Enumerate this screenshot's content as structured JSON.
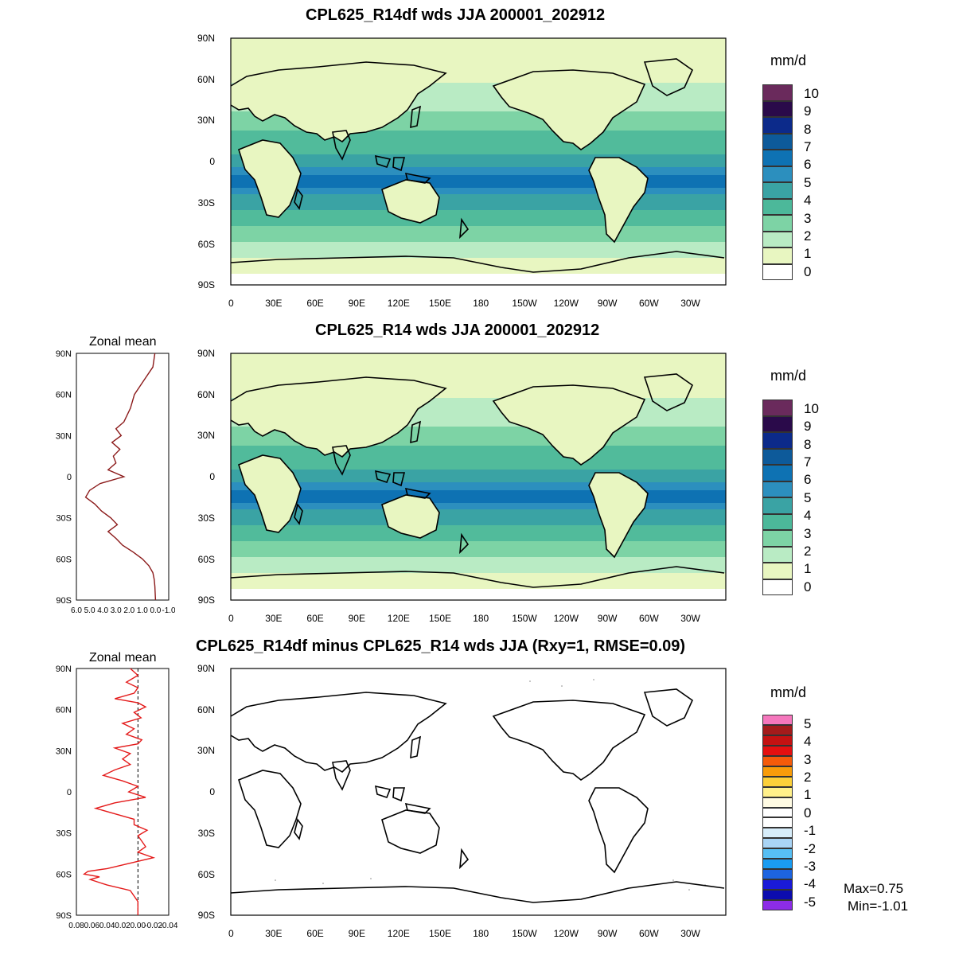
{
  "panels": [
    {
      "title": "CPL625_R14df wds JJA 200001_202912",
      "units": "mm/d",
      "colorbar": {
        "labels": [
          "10",
          "9",
          "8",
          "7",
          "6",
          "5",
          "4",
          "3",
          "2",
          "1",
          "0"
        ],
        "colors": [
          "#6a2a5c",
          "#2a0a4a",
          "#0c2a8a",
          "#0d5a9a",
          "#0e72b3",
          "#2c8fbe",
          "#3aa3a4",
          "#4cb89a",
          "#7dd3a5",
          "#b9ebc4",
          "#e8f6c1",
          "#ffffff"
        ]
      },
      "lat_labels": [
        "90N",
        "60N",
        "30N",
        "0",
        "30S",
        "60S",
        "90S"
      ],
      "lon_labels": [
        "0",
        "30E",
        "60E",
        "90E",
        "120E",
        "150E",
        "180",
        "150W",
        "120W",
        "90W",
        "60W",
        "30W"
      ]
    },
    {
      "title": "CPL625_R14 wds JJA 200001_202912",
      "units": "mm/d",
      "colorbar": {
        "labels": [
          "10",
          "9",
          "8",
          "7",
          "6",
          "5",
          "4",
          "3",
          "2",
          "1",
          "0"
        ],
        "colors": [
          "#6a2a5c",
          "#2a0a4a",
          "#0c2a8a",
          "#0d5a9a",
          "#0e72b3",
          "#2c8fbe",
          "#3aa3a4",
          "#4cb89a",
          "#7dd3a5",
          "#b9ebc4",
          "#e8f6c1",
          "#ffffff"
        ]
      },
      "zonal_title": "Zonal mean",
      "zonal_x_labels": [
        "6.0",
        "5.0",
        "4.0",
        "3.0",
        "2.0",
        "1.0",
        "0.0",
        "-1.0"
      ],
      "zonal_profile": {
        "lat": [
          90,
          80,
          70,
          60,
          50,
          40,
          35,
          30,
          25,
          20,
          15,
          10,
          5,
          0,
          -5,
          -10,
          -15,
          -20,
          -25,
          -30,
          -35,
          -40,
          -45,
          -50,
          -55,
          -60,
          -65,
          -70,
          -75,
          -80,
          -90
        ],
        "val": [
          0.05,
          0.2,
          0.9,
          1.6,
          1.9,
          2.4,
          3.0,
          2.6,
          3.3,
          2.7,
          3.2,
          3.0,
          3.6,
          2.4,
          4.2,
          5.0,
          5.3,
          4.6,
          4.1,
          3.4,
          2.9,
          3.6,
          3.0,
          2.5,
          1.7,
          1.0,
          0.5,
          0.2,
          0.1,
          0.05,
          0.0
        ]
      },
      "lat_labels": [
        "90N",
        "60N",
        "30N",
        "0",
        "30S",
        "60S",
        "90S"
      ],
      "lon_labels": [
        "0",
        "30E",
        "60E",
        "90E",
        "120E",
        "150E",
        "180",
        "150W",
        "120W",
        "90W",
        "60W",
        "30W"
      ]
    },
    {
      "title": "CPL625_R14df minus CPL625_R14 wds JJA (Rxy=1, RMSE=0.09)",
      "units": "mm/d",
      "colorbar": {
        "labels": [
          "5",
          "4",
          "3",
          "2",
          "1",
          "0",
          "-1",
          "-2",
          "-3",
          "-4",
          "-5"
        ],
        "colors": [
          "#f577bd",
          "#a41b1b",
          "#c41212",
          "#e41010",
          "#f55b0a",
          "#f89c0a",
          "#fcd03a",
          "#fff08a",
          "#fffbe3",
          "#ffffff",
          "#ffffff",
          "#d7edfa",
          "#a9d4f5",
          "#57bff4",
          "#1a9cf2",
          "#1d64e0",
          "#1a1ad8",
          "#0c0cae",
          "#8c2ce6"
        ]
      },
      "zonal_title": "Zonal mean",
      "zonal_x_labels": [
        "0.08",
        "0.06",
        "0.04",
        "0.02",
        "0.00",
        "-0.02",
        "-0.04"
      ],
      "zonal_profile": {
        "lat": [
          90,
          85,
          80,
          76,
          72,
          68,
          65,
          62,
          58,
          54,
          50,
          46,
          42,
          38,
          35,
          32,
          28,
          24,
          20,
          16,
          12,
          8,
          4,
          0,
          -4,
          -8,
          -12,
          -16,
          -20,
          -24,
          -28,
          -32,
          -36,
          -40,
          -44,
          -48,
          -52,
          -56,
          -58,
          -60,
          -62,
          -64,
          -68,
          -72,
          -80,
          -90
        ],
        "val": [
          0.01,
          0.0,
          0.015,
          0.0,
          0.005,
          0.03,
          0.0,
          -0.01,
          0.005,
          -0.004,
          0.02,
          0.005,
          0.015,
          -0.005,
          0.0,
          0.03,
          0.01,
          0.02,
          0.01,
          0.03,
          0.045,
          0.02,
          0.0,
          0.012,
          -0.01,
          0.03,
          0.055,
          0.03,
          0.005,
          0.005,
          -0.012,
          0.0,
          -0.005,
          -0.01,
          0.0,
          -0.02,
          0.01,
          0.04,
          0.065,
          0.07,
          0.05,
          0.062,
          0.04,
          0.01,
          0.0,
          0.0
        ]
      },
      "lat_labels": [
        "90N",
        "60N",
        "30N",
        "0",
        "30S",
        "60S",
        "90S"
      ],
      "lon_labels": [
        "0",
        "30E",
        "60E",
        "90E",
        "120E",
        "150E",
        "180",
        "150W",
        "120W",
        "90W",
        "60W",
        "30W"
      ],
      "stats": {
        "max": "Max=0.75",
        "min": "Min=-1.01"
      }
    }
  ]
}
